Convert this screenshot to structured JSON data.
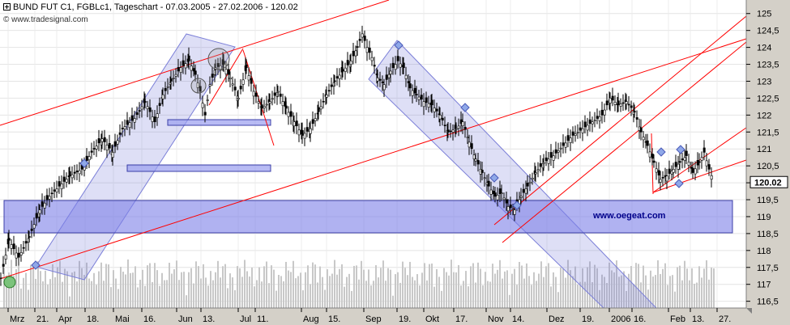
{
  "header": {
    "title": "BUND FUT C1, FGBLc1, Tageschart - 07.03.2005 - 27.02.2006 - 120.02",
    "watermark": "© www.tradesignal.com"
  },
  "annotation": {
    "brand": "www.oegeat.com"
  },
  "colors": {
    "background": "#ffffff",
    "frame": "#d4d0c8",
    "trendline": "#ff0000",
    "channel": "#6a6fd8",
    "volume": "#c8c8c8",
    "price": "#000000",
    "marker": "#8fa8e8"
  },
  "chart_data": {
    "type": "candlestick",
    "x_tick_labels": [
      "Mrz",
      "21.",
      "Apr",
      "18.",
      "Mai",
      "16.",
      "Jun",
      "13.",
      "Jul",
      "11.",
      "Aug",
      "15.",
      "Sep",
      "19.",
      "Okt",
      "17.",
      "Nov",
      "14.",
      "Dez",
      "19.",
      "2006",
      "16.",
      "Feb",
      "13.",
      "27."
    ],
    "y_ticks": [
      116.5,
      117,
      117.5,
      118,
      118.5,
      119,
      119.5,
      120,
      120.5,
      121,
      121.5,
      122,
      122.5,
      123,
      123.5,
      124,
      124.5,
      125
    ],
    "y_tick_labels": [
      "116,5",
      "117",
      "117,5",
      "118",
      "118,5",
      "119",
      "119,5",
      "120",
      "120,5",
      "121",
      "121,5",
      "122",
      "122,5",
      "123",
      "123,5",
      "124",
      "124,5",
      "125"
    ],
    "last_value_label": "120.02",
    "ylim": [
      116.3,
      125.4
    ],
    "grid": true,
    "close_trend": [
      [
        0,
        117.2
      ],
      [
        10,
        118.3
      ],
      [
        22,
        117.8
      ],
      [
        35,
        118.4
      ],
      [
        48,
        119.2
      ],
      [
        60,
        119.6
      ],
      [
        72,
        119.9
      ],
      [
        85,
        120.2
      ],
      [
        100,
        120.4
      ],
      [
        112,
        120.9
      ],
      [
        125,
        121.3
      ],
      [
        138,
        120.9
      ],
      [
        150,
        121.6
      ],
      [
        165,
        121.9
      ],
      [
        178,
        122.4
      ],
      [
        190,
        121.8
      ],
      [
        200,
        122.6
      ],
      [
        210,
        123.0
      ],
      [
        222,
        123.4
      ],
      [
        232,
        123.6
      ],
      [
        240,
        123.2
      ],
      [
        246,
        122.7
      ],
      [
        252,
        122.0
      ],
      [
        258,
        122.9
      ],
      [
        265,
        123.4
      ],
      [
        275,
        123.5
      ],
      [
        283,
        123.1
      ],
      [
        293,
        122.5
      ],
      [
        303,
        123.4
      ],
      [
        312,
        122.7
      ],
      [
        322,
        122.2
      ],
      [
        332,
        122.4
      ],
      [
        342,
        122.7
      ],
      [
        352,
        122.2
      ],
      [
        362,
        121.8
      ],
      [
        372,
        121.4
      ],
      [
        382,
        121.6
      ],
      [
        392,
        122.1
      ],
      [
        402,
        122.6
      ],
      [
        412,
        123.0
      ],
      [
        422,
        123.3
      ],
      [
        432,
        123.6
      ],
      [
        440,
        124.0
      ],
      [
        446,
        124.4
      ],
      [
        452,
        124.0
      ],
      [
        458,
        123.7
      ],
      [
        465,
        123.1
      ],
      [
        473,
        122.9
      ],
      [
        481,
        123.3
      ],
      [
        490,
        123.6
      ],
      [
        497,
        123.4
      ],
      [
        505,
        122.8
      ],
      [
        513,
        122.6
      ],
      [
        522,
        122.4
      ],
      [
        532,
        122.3
      ],
      [
        542,
        122.0
      ],
      [
        552,
        121.5
      ],
      [
        562,
        121.6
      ],
      [
        570,
        121.8
      ],
      [
        578,
        121.2
      ],
      [
        586,
        120.7
      ],
      [
        594,
        120.3
      ],
      [
        602,
        119.9
      ],
      [
        610,
        119.6
      ],
      [
        618,
        119.7
      ],
      [
        626,
        119.3
      ],
      [
        634,
        119.2
      ],
      [
        642,
        119.6
      ],
      [
        650,
        119.9
      ],
      [
        660,
        120.3
      ],
      [
        670,
        120.6
      ],
      [
        682,
        120.8
      ],
      [
        694,
        121.1
      ],
      [
        706,
        121.4
      ],
      [
        718,
        121.6
      ],
      [
        730,
        121.8
      ],
      [
        742,
        122.0
      ],
      [
        752,
        122.5
      ],
      [
        762,
        122.3
      ],
      [
        772,
        122.4
      ],
      [
        782,
        122.1
      ],
      [
        790,
        121.5
      ],
      [
        798,
        121.1
      ],
      [
        806,
        120.6
      ],
      [
        814,
        120.1
      ],
      [
        822,
        120.2
      ],
      [
        830,
        120.4
      ],
      [
        838,
        120.6
      ],
      [
        846,
        120.8
      ],
      [
        854,
        120.3
      ],
      [
        862,
        120.6
      ],
      [
        868,
        120.9
      ],
      [
        874,
        120.4
      ],
      [
        880,
        120.02
      ]
    ]
  }
}
